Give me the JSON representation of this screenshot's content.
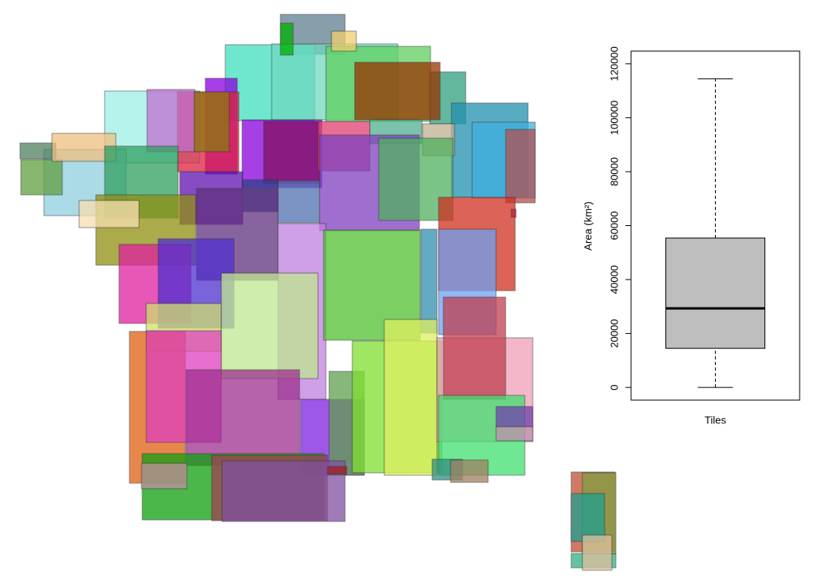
{
  "chart_data": {
    "type": "box",
    "ylabel": "Area (km²)",
    "categories": [
      "Tiles"
    ],
    "box": {
      "min": 0,
      "q1": 14500,
      "median": 29300,
      "q3": 55400,
      "max": 114400
    },
    "color": "#bebebe",
    "ylim": [
      -4700,
      124700
    ],
    "yticks": [
      0,
      20000,
      40000,
      60000,
      80000,
      100000,
      120000
    ]
  }
}
